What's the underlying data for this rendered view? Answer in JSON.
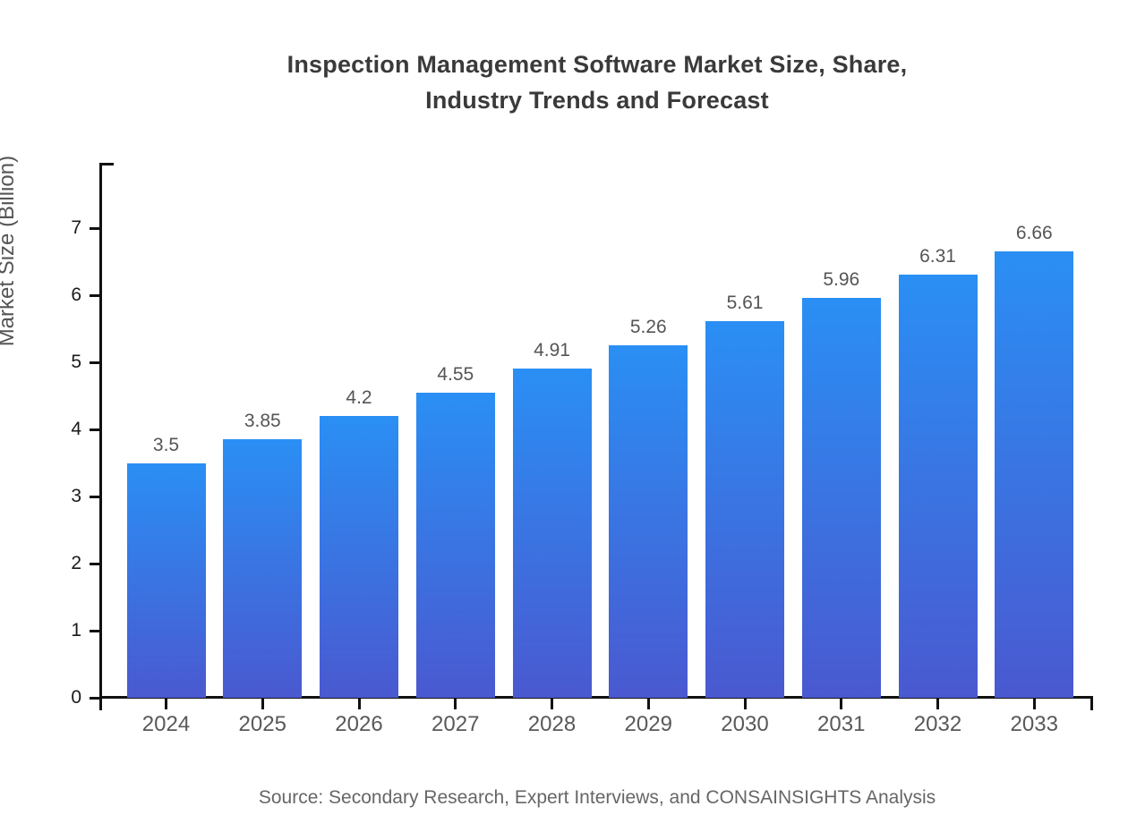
{
  "title": {
    "line1": "Inspection Management Software Market Size, Share,",
    "line2": "Industry Trends and Forecast"
  },
  "source_note": "Source: Secondary Research, Expert Interviews, and CONSAINSIGHTS Analysis",
  "colors": {
    "bar_gradient_top": "#2a8ff4",
    "bar_gradient_bottom": "#4a59d0",
    "axis": "#111111",
    "title_text": "#3a3a3a",
    "value_label_text": "#555555",
    "y_tick_label_text": "#1a1a1a",
    "year_label_text": "#58595b",
    "source_text": "#666666"
  },
  "chart_data": {
    "type": "bar",
    "title": "Inspection Management Software Market Size, Share, Industry Trends and Forecast",
    "categories": [
      "2024",
      "2025",
      "2026",
      "2027",
      "2028",
      "2029",
      "2030",
      "2031",
      "2032",
      "2033"
    ],
    "values": [
      3.5,
      3.85,
      4.2,
      4.55,
      4.91,
      5.26,
      5.61,
      5.96,
      6.31,
      6.66
    ],
    "bar_labels": [
      "3.5",
      "3.85",
      "4.2",
      "4.55",
      "4.91",
      "5.26",
      "5.61",
      "5.96",
      "6.31",
      "6.66"
    ],
    "xlabel": "",
    "ylabel": "Market Size (Billion)",
    "ylim": [
      0,
      7
    ],
    "yticks": [
      0,
      1,
      2,
      3,
      4,
      5,
      6,
      7
    ],
    "grid": false,
    "legend": "none"
  }
}
